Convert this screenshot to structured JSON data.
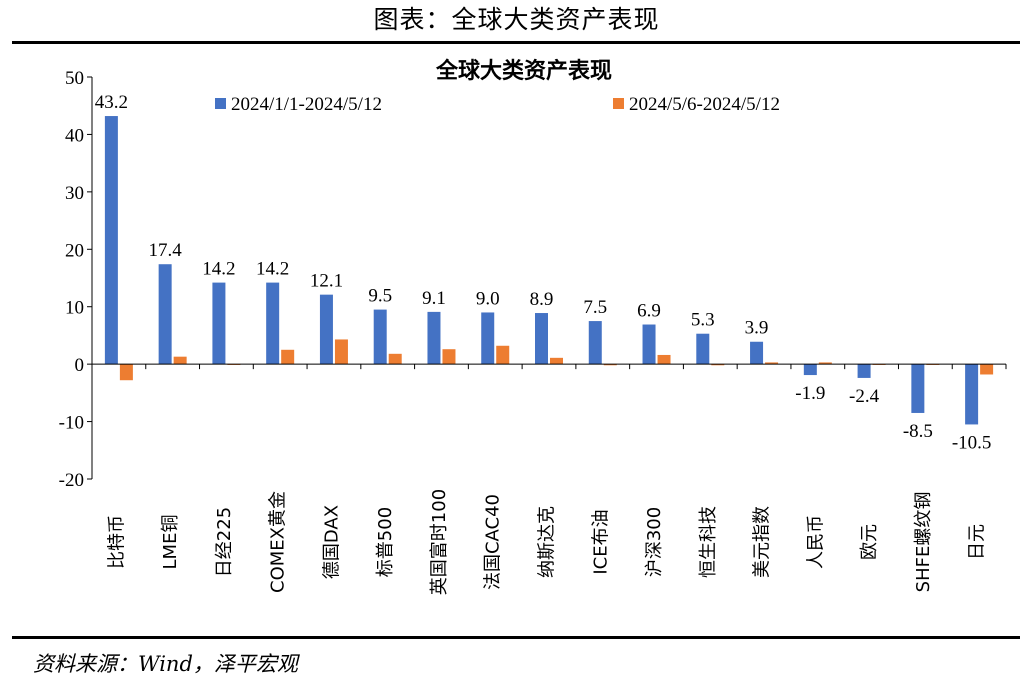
{
  "page": {
    "heading": "图表：全球大类资产表现",
    "source": "资料来源：Wind，泽平宏观"
  },
  "colors": {
    "series1": "#4472C4",
    "series2": "#ED7D31"
  },
  "chart_data": {
    "type": "bar",
    "title": "全球大类资产表现",
    "xlabel": "",
    "ylabel": "",
    "ylim": [
      -20,
      50
    ],
    "yticks": [
      50,
      40,
      30,
      20,
      10,
      0,
      -10,
      -20
    ],
    "grid": false,
    "legend_position": "top",
    "categories": [
      "比特币",
      "LME铜",
      "日经225",
      "COMEX黄金",
      "德国DAX",
      "标普500",
      "英国富时100",
      "法国CAC40",
      "纳斯达克",
      "ICE布油",
      "沪深300",
      "恒生科技",
      "美元指数",
      "人民币",
      "欧元",
      "SHFE螺纹钢",
      "日元"
    ],
    "series": [
      {
        "name": "2024/1/1-2024/5/12",
        "values": [
          43.2,
          17.4,
          14.2,
          14.2,
          12.1,
          9.5,
          9.1,
          9.0,
          8.9,
          7.5,
          6.9,
          5.3,
          3.9,
          -1.9,
          -2.4,
          -8.5,
          -10.5
        ],
        "labels": [
          "43.2",
          "17.4",
          "14.2",
          "14.2",
          "12.1",
          "9.5",
          "9.1",
          "9.0",
          "8.9",
          "7.5",
          "6.9",
          "5.3",
          "3.9",
          "-1.9",
          "-2.4",
          "-8.5",
          "-10.5"
        ]
      },
      {
        "name": "2024/5/6-2024/5/12",
        "values": [
          -2.8,
          1.3,
          0.0,
          2.5,
          4.3,
          1.8,
          2.6,
          3.2,
          1.1,
          -0.2,
          1.6,
          -0.2,
          0.3,
          0.3,
          0.0,
          -0.1,
          -1.8
        ]
      }
    ]
  }
}
